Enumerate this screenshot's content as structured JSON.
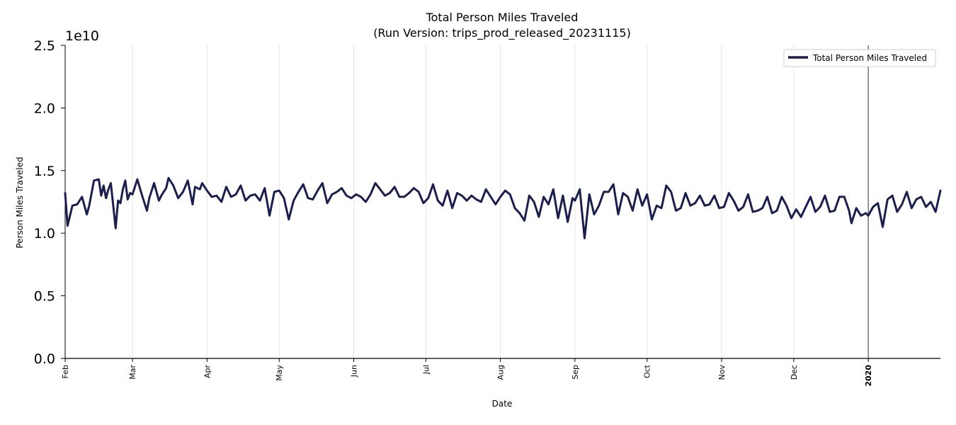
{
  "chart_data": {
    "type": "line",
    "title": "Total Person Miles Traveled",
    "subtitle": "(Run Version: trips_prod_released_20231115)",
    "xlabel": "Date",
    "ylabel": "Person Miles Traveled",
    "y_offset_label": "1e10",
    "ylim": [
      0,
      25000000000.0
    ],
    "xlim": [
      "2019-02-01",
      "2020-01-31"
    ],
    "grid": "vertical",
    "legend_position": "top-right",
    "y_ticks": [
      {
        "value": 0,
        "label": "0.0"
      },
      {
        "value": 5000000000.0,
        "label": "0.5"
      },
      {
        "value": 10000000000.0,
        "label": "1.0"
      },
      {
        "value": 15000000000.0,
        "label": "1.5"
      },
      {
        "value": 20000000000.0,
        "label": "2.0"
      },
      {
        "value": 25000000000.0,
        "label": "2.5"
      }
    ],
    "x_ticks": [
      {
        "date": "2019-02-01",
        "label": "Feb",
        "bold": false
      },
      {
        "date": "2019-03-01",
        "label": "Mar",
        "bold": false
      },
      {
        "date": "2019-04-01",
        "label": "Apr",
        "bold": false
      },
      {
        "date": "2019-05-01",
        "label": "May",
        "bold": false
      },
      {
        "date": "2019-06-01",
        "label": "Jun",
        "bold": false
      },
      {
        "date": "2019-07-01",
        "label": "Jul",
        "bold": false
      },
      {
        "date": "2019-08-01",
        "label": "Aug",
        "bold": false
      },
      {
        "date": "2019-09-01",
        "label": "Sep",
        "bold": false
      },
      {
        "date": "2019-10-01",
        "label": "Oct",
        "bold": false
      },
      {
        "date": "2019-11-01",
        "label": "Nov",
        "bold": false
      },
      {
        "date": "2019-12-01",
        "label": "Dec",
        "bold": false
      },
      {
        "date": "2020-01-01",
        "label": "2020",
        "bold": true
      }
    ],
    "reference_line_date": "2020-01-01",
    "series": [
      {
        "name": "Total Person Miles Traveled",
        "color": "#1c1f4d",
        "x": [
          "2019-02-01",
          "2019-02-02",
          "2019-02-04",
          "2019-02-06",
          "2019-02-08",
          "2019-02-10",
          "2019-02-11",
          "2019-02-13",
          "2019-02-15",
          "2019-02-16",
          "2019-02-17",
          "2019-02-18",
          "2019-02-19",
          "2019-02-20",
          "2019-02-22",
          "2019-02-23",
          "2019-02-24",
          "2019-02-25",
          "2019-02-26",
          "2019-02-27",
          "2019-02-28",
          "2019-03-01",
          "2019-03-03",
          "2019-03-05",
          "2019-03-07",
          "2019-03-08",
          "2019-03-10",
          "2019-03-12",
          "2019-03-13",
          "2019-03-15",
          "2019-03-16",
          "2019-03-18",
          "2019-03-20",
          "2019-03-22",
          "2019-03-24",
          "2019-03-26",
          "2019-03-27",
          "2019-03-29",
          "2019-03-30",
          "2019-04-01",
          "2019-04-03",
          "2019-04-05",
          "2019-04-07",
          "2019-04-09",
          "2019-04-11",
          "2019-04-13",
          "2019-04-15",
          "2019-04-17",
          "2019-04-19",
          "2019-04-21",
          "2019-04-23",
          "2019-04-25",
          "2019-04-27",
          "2019-04-29",
          "2019-05-01",
          "2019-05-03",
          "2019-05-05",
          "2019-05-07",
          "2019-05-09",
          "2019-05-11",
          "2019-05-13",
          "2019-05-15",
          "2019-05-17",
          "2019-05-19",
          "2019-05-21",
          "2019-05-23",
          "2019-05-25",
          "2019-05-27",
          "2019-05-29",
          "2019-05-31",
          "2019-06-02",
          "2019-06-04",
          "2019-06-06",
          "2019-06-08",
          "2019-06-10",
          "2019-06-12",
          "2019-06-14",
          "2019-06-16",
          "2019-06-18",
          "2019-06-20",
          "2019-06-22",
          "2019-06-24",
          "2019-06-26",
          "2019-06-28",
          "2019-06-30",
          "2019-07-02",
          "2019-07-04",
          "2019-07-06",
          "2019-07-08",
          "2019-07-10",
          "2019-07-12",
          "2019-07-14",
          "2019-07-16",
          "2019-07-18",
          "2019-07-20",
          "2019-07-22",
          "2019-07-24",
          "2019-07-26",
          "2019-07-28",
          "2019-07-30",
          "2019-08-01",
          "2019-08-03",
          "2019-08-05",
          "2019-08-07",
          "2019-08-09",
          "2019-08-11",
          "2019-08-13",
          "2019-08-15",
          "2019-08-17",
          "2019-08-19",
          "2019-08-21",
          "2019-08-23",
          "2019-08-25",
          "2019-08-27",
          "2019-08-29",
          "2019-08-31",
          "2019-09-01",
          "2019-09-03",
          "2019-09-05",
          "2019-09-07",
          "2019-09-09",
          "2019-09-11",
          "2019-09-13",
          "2019-09-15",
          "2019-09-17",
          "2019-09-19",
          "2019-09-21",
          "2019-09-23",
          "2019-09-25",
          "2019-09-27",
          "2019-09-29",
          "2019-10-01",
          "2019-10-03",
          "2019-10-05",
          "2019-10-07",
          "2019-10-09",
          "2019-10-11",
          "2019-10-13",
          "2019-10-15",
          "2019-10-17",
          "2019-10-19",
          "2019-10-21",
          "2019-10-23",
          "2019-10-25",
          "2019-10-27",
          "2019-10-29",
          "2019-10-31",
          "2019-11-02",
          "2019-11-04",
          "2019-11-06",
          "2019-11-08",
          "2019-11-10",
          "2019-11-12",
          "2019-11-14",
          "2019-11-16",
          "2019-11-18",
          "2019-11-20",
          "2019-11-22",
          "2019-11-24",
          "2019-11-26",
          "2019-11-28",
          "2019-11-30",
          "2019-12-02",
          "2019-12-04",
          "2019-12-06",
          "2019-12-08",
          "2019-12-10",
          "2019-12-12",
          "2019-12-14",
          "2019-12-16",
          "2019-12-18",
          "2019-12-20",
          "2019-12-22",
          "2019-12-24",
          "2019-12-25",
          "2019-12-27",
          "2019-12-29",
          "2019-12-31",
          "2020-01-01",
          "2020-01-03",
          "2020-01-05",
          "2020-01-07",
          "2020-01-09",
          "2020-01-11",
          "2020-01-13",
          "2020-01-15",
          "2020-01-17",
          "2020-01-19",
          "2020-01-21",
          "2020-01-23",
          "2020-01-25",
          "2020-01-27",
          "2020-01-29",
          "2020-01-31"
        ],
        "values": [
          13200000000.0,
          10600000000.0,
          12200000000.0,
          12300000000.0,
          12900000000.0,
          11500000000.0,
          12200000000.0,
          14200000000.0,
          14300000000.0,
          13000000000.0,
          13800000000.0,
          12800000000.0,
          13500000000.0,
          14000000000.0,
          10400000000.0,
          12600000000.0,
          12400000000.0,
          13500000000.0,
          14200000000.0,
          12700000000.0,
          13200000000.0,
          13100000000.0,
          14300000000.0,
          13000000000.0,
          11800000000.0,
          12800000000.0,
          14000000000.0,
          12600000000.0,
          13000000000.0,
          13600000000.0,
          14400000000.0,
          13800000000.0,
          12800000000.0,
          13300000000.0,
          14200000000.0,
          12300000000.0,
          13700000000.0,
          13500000000.0,
          14000000000.0,
          13400000000.0,
          12900000000.0,
          13000000000.0,
          12500000000.0,
          13700000000.0,
          12900000000.0,
          13100000000.0,
          13800000000.0,
          12600000000.0,
          13000000000.0,
          13100000000.0,
          12600000000.0,
          13600000000.0,
          11400000000.0,
          13300000000.0,
          13400000000.0,
          12800000000.0,
          11100000000.0,
          12600000000.0,
          13300000000.0,
          13900000000.0,
          12800000000.0,
          12700000000.0,
          13400000000.0,
          14000000000.0,
          12400000000.0,
          13100000000.0,
          13300000000.0,
          13600000000.0,
          13000000000.0,
          12800000000.0,
          13100000000.0,
          12900000000.0,
          12500000000.0,
          13100000000.0,
          14000000000.0,
          13500000000.0,
          13000000000.0,
          13200000000.0,
          13700000000.0,
          12900000000.0,
          12900000000.0,
          13200000000.0,
          13600000000.0,
          13300000000.0,
          12400000000.0,
          12800000000.0,
          13900000000.0,
          12600000000.0,
          12200000000.0,
          13400000000.0,
          12000000000.0,
          13200000000.0,
          13000000000.0,
          12600000000.0,
          13000000000.0,
          12700000000.0,
          12500000000.0,
          13500000000.0,
          12900000000.0,
          12300000000.0,
          12900000000.0,
          13400000000.0,
          13100000000.0,
          12000000000.0,
          11600000000.0,
          11000000000.0,
          13000000000.0,
          12500000000.0,
          11300000000.0,
          12900000000.0,
          12300000000.0,
          13500000000.0,
          11200000000.0,
          13000000000.0,
          10900000000.0,
          12800000000.0,
          12600000000.0,
          13500000000.0,
          9600000000.0,
          13100000000.0,
          11500000000.0,
          12200000000.0,
          13300000000.0,
          13300000000.0,
          13900000000.0,
          11500000000.0,
          13200000000.0,
          12900000000.0,
          11800000000.0,
          13500000000.0,
          12200000000.0,
          13100000000.0,
          11100000000.0,
          12200000000.0,
          12000000000.0,
          13800000000.0,
          13300000000.0,
          11800000000.0,
          12000000000.0,
          13200000000.0,
          12200000000.0,
          12400000000.0,
          13000000000.0,
          12200000000.0,
          12300000000.0,
          13000000000.0,
          12000000000.0,
          12100000000.0,
          13200000000.0,
          12600000000.0,
          11800000000.0,
          12100000000.0,
          13100000000.0,
          11700000000.0,
          11800000000.0,
          12000000000.0,
          12900000000.0,
          11600000000.0,
          11800000000.0,
          12900000000.0,
          12200000000.0,
          11200000000.0,
          11900000000.0,
          11300000000.0,
          12100000000.0,
          12900000000.0,
          11700000000.0,
          12100000000.0,
          13000000000.0,
          11700000000.0,
          11800000000.0,
          12900000000.0,
          12900000000.0,
          11800000000.0,
          10800000000.0,
          12000000000.0,
          11400000000.0,
          11600000000.0,
          11400000000.0,
          12100000000.0,
          12400000000.0,
          10500000000.0,
          12700000000.0,
          13000000000.0,
          11700000000.0,
          12300000000.0,
          13300000000.0,
          12000000000.0,
          12700000000.0,
          12900000000.0,
          12100000000.0,
          12500000000.0,
          11700000000.0,
          13400000000.0
        ]
      }
    ]
  }
}
